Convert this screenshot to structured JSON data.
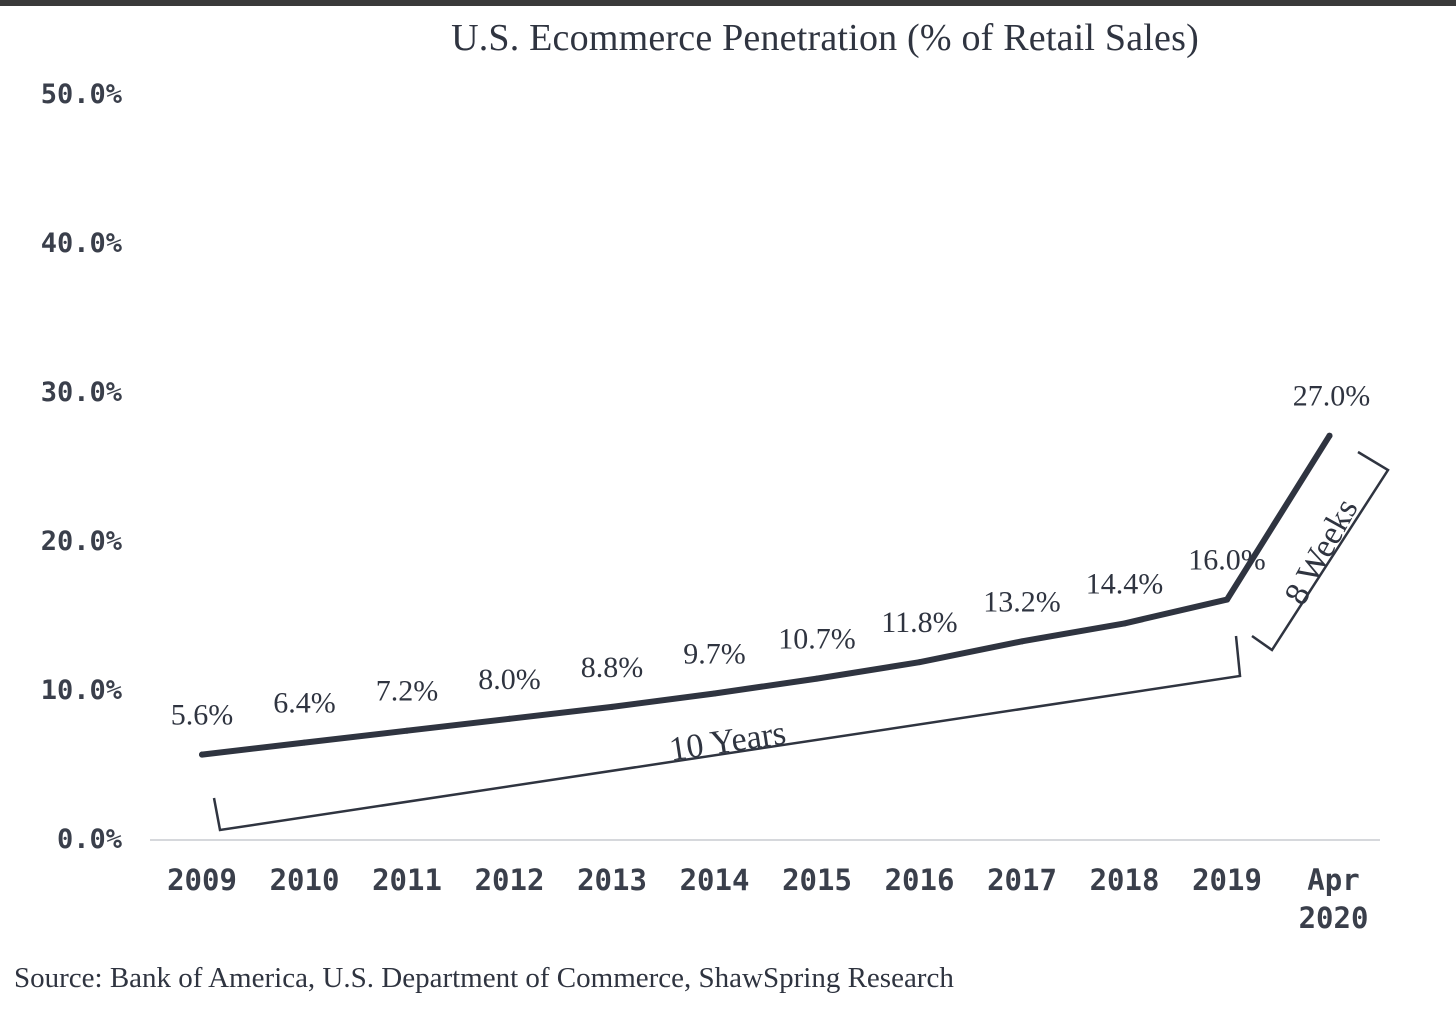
{
  "chart_data": {
    "type": "line",
    "title": "U.S. Ecommerce Penetration (% of Retail Sales)",
    "xlabel": "",
    "ylabel": "",
    "categories": [
      "2009",
      "2010",
      "2011",
      "2012",
      "2013",
      "2014",
      "2015",
      "2016",
      "2017",
      "2018",
      "2019",
      [
        "Apr",
        "2020"
      ]
    ],
    "series": [
      {
        "values": [
          5.6,
          6.4,
          7.2,
          8.0,
          8.8,
          9.7,
          10.7,
          11.8,
          13.2,
          14.4,
          16.0,
          27.0
        ]
      }
    ],
    "data_labels": [
      "5.6%",
      "6.4%",
      "7.2%",
      "8.0%",
      "8.8%",
      "9.7%",
      "10.7%",
      "11.8%",
      "13.2%",
      "14.4%",
      "16.0%",
      "27.0%"
    ],
    "ylim": [
      0,
      50
    ],
    "yticks": [
      {
        "value": 0,
        "label": "0.0%"
      },
      {
        "value": 10,
        "label": "10.0%"
      },
      {
        "value": 20,
        "label": "20.0%"
      },
      {
        "value": 30,
        "label": "30.0%"
      },
      {
        "value": 40,
        "label": "40.0%"
      },
      {
        "value": 50,
        "label": "50.0%"
      }
    ],
    "grid": false,
    "annotations": [
      {
        "text": "10 Years",
        "from": "2009",
        "to": "2019"
      },
      {
        "text": "8 Weeks",
        "from": "2019",
        "to": "Apr 2020"
      }
    ],
    "colors": {
      "line": "#2f3440",
      "text": "#2f3440"
    }
  },
  "source": "Source: Bank of America, U.S. Department of Commerce, ShawSpring Research"
}
